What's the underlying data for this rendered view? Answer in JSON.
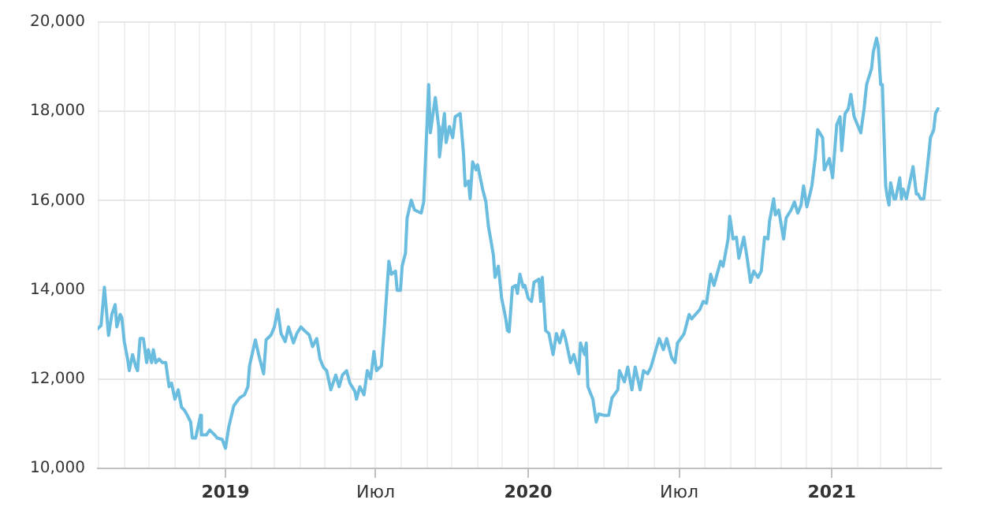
{
  "chart_data": {
    "type": "line",
    "color": "#6bbde0",
    "grid": true,
    "x": [
      "2018-07-31",
      "2018-08-04",
      "2018-08-08",
      "2018-08-10",
      "2018-08-13",
      "2018-08-17",
      "2018-08-21",
      "2018-08-23",
      "2018-08-27",
      "2018-08-29",
      "2018-09-01",
      "2018-09-05",
      "2018-09-07",
      "2018-09-11",
      "2018-09-15",
      "2018-09-17",
      "2018-09-20",
      "2018-09-24",
      "2018-09-28",
      "2018-09-30",
      "2018-10-04",
      "2018-10-06",
      "2018-10-09",
      "2018-10-13",
      "2018-10-17",
      "2018-10-21",
      "2018-10-25",
      "2018-10-28",
      "2018-11-01",
      "2018-11-05",
      "2018-11-09",
      "2018-11-13",
      "2018-11-16",
      "2018-11-20",
      "2018-11-22",
      "2018-11-26",
      "2018-12-02",
      "2018-12-03",
      "2018-12-09",
      "2018-12-13",
      "2018-12-19",
      "2018-12-22",
      "2018-12-28",
      "2019-01-01",
      "2019-01-05",
      "2019-01-11",
      "2019-01-18",
      "2019-01-24",
      "2019-01-28",
      "2019-01-30",
      "2019-02-06",
      "2019-02-10",
      "2019-02-16",
      "2019-02-19",
      "2019-02-25",
      "2019-03-01",
      "2019-03-05",
      "2019-03-09",
      "2019-03-14",
      "2019-03-18",
      "2019-03-24",
      "2019-03-28",
      "2019-04-02",
      "2019-04-06",
      "2019-04-12",
      "2019-04-16",
      "2019-04-21",
      "2019-04-25",
      "2019-04-29",
      "2019-05-03",
      "2019-05-08",
      "2019-05-14",
      "2019-05-18",
      "2019-05-22",
      "2019-05-27",
      "2019-05-31",
      "2019-06-06",
      "2019-06-08",
      "2019-06-12",
      "2019-06-17",
      "2019-06-21",
      "2019-06-25",
      "2019-06-29",
      "2019-07-02",
      "2019-07-08",
      "2019-07-12",
      "2019-07-17",
      "2019-07-20",
      "2019-07-25",
      "2019-07-27",
      "2019-07-31",
      "2019-08-02",
      "2019-08-06",
      "2019-08-08",
      "2019-08-13",
      "2019-08-17",
      "2019-08-25",
      "2019-08-28",
      "2019-09-03",
      "2019-09-05",
      "2019-09-11",
      "2019-09-15",
      "2019-09-16",
      "2019-09-22",
      "2019-09-24",
      "2019-09-28",
      "2019-10-02",
      "2019-10-05",
      "2019-10-11",
      "2019-10-15",
      "2019-10-17",
      "2019-10-21",
      "2019-10-23",
      "2019-10-26",
      "2019-10-30",
      "2019-11-01",
      "2019-11-07",
      "2019-11-11",
      "2019-11-14",
      "2019-11-20",
      "2019-11-22",
      "2019-11-26",
      "2019-11-30",
      "2019-12-05",
      "2019-12-07",
      "2019-12-09",
      "2019-12-13",
      "2019-12-17",
      "2019-12-19",
      "2019-12-22",
      "2019-12-26",
      "2019-12-28",
      "2020-01-01",
      "2020-01-05",
      "2020-01-08",
      "2020-01-14",
      "2020-01-16",
      "2020-01-18",
      "2020-01-22",
      "2020-01-26",
      "2020-01-31",
      "2020-02-04",
      "2020-02-08",
      "2020-02-12",
      "2020-02-15",
      "2020-02-21",
      "2020-02-25",
      "2020-03-02",
      "2020-03-04",
      "2020-03-09",
      "2020-03-11",
      "2020-03-13",
      "2020-03-19",
      "2020-03-23",
      "2020-03-26",
      "2020-04-01",
      "2020-04-07",
      "2020-04-11",
      "2020-04-18",
      "2020-04-20",
      "2020-04-26",
      "2020-04-30",
      "2020-05-05",
      "2020-05-09",
      "2020-05-15",
      "2020-05-19",
      "2020-05-24",
      "2020-05-28",
      "2020-06-03",
      "2020-06-07",
      "2020-06-12",
      "2020-06-16",
      "2020-06-22",
      "2020-06-26",
      "2020-06-29",
      "2020-07-03",
      "2020-07-07",
      "2020-07-13",
      "2020-07-16",
      "2020-07-26",
      "2020-07-30",
      "2020-08-03",
      "2020-08-08",
      "2020-08-12",
      "2020-08-20",
      "2020-08-23",
      "2020-08-29",
      "2020-08-31",
      "2020-09-04",
      "2020-09-08",
      "2020-09-11",
      "2020-09-17",
      "2020-09-21",
      "2020-09-25",
      "2020-09-29",
      "2020-10-04",
      "2020-10-08",
      "2020-10-12",
      "2020-10-16",
      "2020-10-18",
      "2020-10-23",
      "2020-10-25",
      "2020-10-29",
      "2020-11-04",
      "2020-11-07",
      "2020-11-13",
      "2020-11-17",
      "2020-11-21",
      "2020-11-25",
      "2020-11-28",
      "2020-12-02",
      "2020-12-08",
      "2020-12-12",
      "2020-12-15",
      "2020-12-21",
      "2020-12-23",
      "2020-12-29",
      "2021-01-02",
      "2021-01-07",
      "2021-01-11",
      "2021-01-13",
      "2021-01-17",
      "2021-01-21",
      "2021-01-24",
      "2021-01-28",
      "2021-02-01",
      "2021-02-05",
      "2021-02-09",
      "2021-02-12",
      "2021-02-18",
      "2021-02-20",
      "2021-02-24",
      "2021-02-26",
      "2021-03-01",
      "2021-03-03",
      "2021-03-07",
      "2021-03-09",
      "2021-03-11",
      "2021-03-13",
      "2021-03-17",
      "2021-03-19",
      "2021-03-24",
      "2021-03-26",
      "2021-03-28",
      "2021-04-01",
      "2021-04-05",
      "2021-04-09",
      "2021-04-13",
      "2021-04-15",
      "2021-04-18",
      "2021-04-22",
      "2021-04-26",
      "2021-04-30",
      "2021-05-04",
      "2021-05-06",
      "2021-05-09"
    ],
    "values": [
      13130,
      13200,
      14060,
      13630,
      12980,
      13450,
      13670,
      13170,
      13450,
      13380,
      12840,
      12450,
      12190,
      12550,
      12270,
      12190,
      12910,
      12910,
      12370,
      12660,
      12370,
      12660,
      12370,
      12450,
      12370,
      12370,
      11830,
      11910,
      11550,
      11760,
      11370,
      11290,
      11190,
      11040,
      10680,
      10680,
      11190,
      10750,
      10750,
      10860,
      10750,
      10680,
      10650,
      10450,
      10930,
      11400,
      11580,
      11650,
      11830,
      12300,
      12880,
      12550,
      12120,
      12880,
      12990,
      13170,
      13560,
      13020,
      12840,
      13170,
      12810,
      13020,
      13170,
      13090,
      12990,
      12730,
      12910,
      12450,
      12270,
      12190,
      11760,
      12090,
      11830,
      12090,
      12190,
      11910,
      11730,
      11550,
      11830,
      11650,
      12190,
      12010,
      12620,
      12190,
      12300,
      13280,
      14640,
      14350,
      14420,
      13990,
      13990,
      14530,
      14820,
      15610,
      16010,
      15790,
      15720,
      15970,
      18600,
      17520,
      18310,
      17660,
      16980,
      17950,
      17300,
      17660,
      17410,
      17880,
      17950,
      17050,
      16330,
      16440,
      16040,
      16870,
      16690,
      16800,
      16260,
      15970,
      15430,
      14780,
      14280,
      14530,
      13810,
      13350,
      13090,
      13060,
      14060,
      14100,
      13920,
      14350,
      14060,
      14100,
      13810,
      13740,
      14170,
      14240,
      13740,
      14280,
      13090,
      13020,
      12550,
      13020,
      12810,
      13090,
      12910,
      12370,
      12550,
      12120,
      12810,
      12550,
      12810,
      11830,
      11550,
      11040,
      11220,
      11190,
      11190,
      11580,
      11760,
      12190,
      11940,
      12270,
      11760,
      12270,
      11760,
      12190,
      12120,
      12270,
      12660,
      12910,
      12660,
      12910,
      12480,
      12370,
      12810,
      12910,
      13020,
      13450,
      13350,
      13560,
      13740,
      13700,
      14350,
      14100,
      14640,
      14530,
      15140,
      15650,
      15140,
      15180,
      14710,
      15180,
      14710,
      14170,
      14420,
      14280,
      14420,
      15180,
      15140,
      15540,
      16040,
      15680,
      15790,
      15140,
      15610,
      15790,
      15970,
      15720,
      15900,
      16330,
      15860,
      16330,
      16940,
      17590,
      17410,
      16690,
      16940,
      16510,
      17700,
      17880,
      17120,
      17950,
      18060,
      18380,
      17880,
      17700,
      17520,
      18060,
      18600,
      18960,
      19320,
      19640,
      19460,
      18600,
      18600,
      16330,
      16080,
      15900,
      16400,
      16040,
      16040,
      16510,
      16040,
      16260,
      16040,
      16400,
      16760,
      16150,
      16150,
      16040,
      16040,
      16690,
      17410,
      17590,
      17950,
      18060
    ],
    "xlim": [
      "2018-07-31",
      "2021-05-13"
    ],
    "xticks": [
      {
        "value": "2018-08",
        "label": null
      },
      {
        "value": "2018-09",
        "label": null
      },
      {
        "value": "2018-10",
        "label": null
      },
      {
        "value": "2018-11",
        "label": null
      },
      {
        "value": "2018-12",
        "label": null
      },
      {
        "value": "2019-01",
        "label": "2019"
      },
      {
        "value": "2019-02",
        "label": null
      },
      {
        "value": "2019-03",
        "label": null
      },
      {
        "value": "2019-04",
        "label": null
      },
      {
        "value": "2019-05",
        "label": null
      },
      {
        "value": "2019-06",
        "label": null
      },
      {
        "value": "2019-07",
        "label": "Июл"
      },
      {
        "value": "2019-08",
        "label": null
      },
      {
        "value": "2019-09",
        "label": null
      },
      {
        "value": "2019-10",
        "label": null
      },
      {
        "value": "2019-11",
        "label": null
      },
      {
        "value": "2019-12",
        "label": null
      },
      {
        "value": "2020-01",
        "label": "2020"
      },
      {
        "value": "2020-02",
        "label": null
      },
      {
        "value": "2020-03",
        "label": null
      },
      {
        "value": "2020-04",
        "label": null
      },
      {
        "value": "2020-05",
        "label": null
      },
      {
        "value": "2020-06",
        "label": null
      },
      {
        "value": "2020-07",
        "label": "Июл"
      },
      {
        "value": "2020-08",
        "label": null
      },
      {
        "value": "2020-09",
        "label": null
      },
      {
        "value": "2020-10",
        "label": null
      },
      {
        "value": "2020-11",
        "label": null
      },
      {
        "value": "2020-12",
        "label": null
      },
      {
        "value": "2021-01",
        "label": "2021"
      },
      {
        "value": "2021-02",
        "label": null
      },
      {
        "value": "2021-03",
        "label": null
      },
      {
        "value": "2021-04",
        "label": null
      },
      {
        "value": "2021-05",
        "label": null
      }
    ],
    "ylim": [
      10000,
      20000
    ],
    "yticks": [
      {
        "value": 10000,
        "label": "10,000"
      },
      {
        "value": 12000,
        "label": "12,000"
      },
      {
        "value": 14000,
        "label": "14,000"
      },
      {
        "value": 16000,
        "label": "16,000"
      },
      {
        "value": 18000,
        "label": "18,000"
      },
      {
        "value": 20000,
        "label": "20,000"
      }
    ]
  }
}
